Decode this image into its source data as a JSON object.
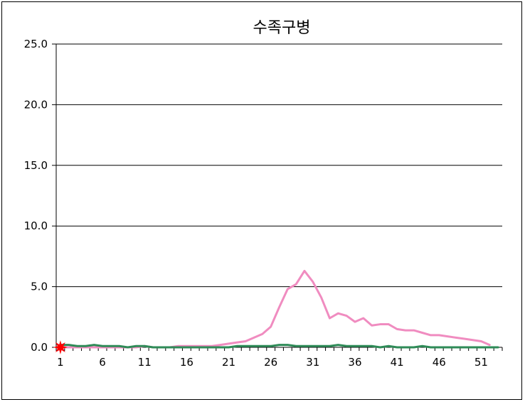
{
  "chart_data": {
    "type": "line",
    "title": "수족구병",
    "xlabel": "",
    "ylabel": "",
    "ylim": [
      0,
      25
    ],
    "y_ticks": [
      "0.0",
      "5.0",
      "10.0",
      "15.0",
      "20.0",
      "25.0"
    ],
    "x_ticks": [
      "1",
      "6",
      "11",
      "16",
      "21",
      "26",
      "31",
      "36",
      "41",
      "46",
      "51"
    ],
    "x_range": [
      1,
      53
    ],
    "grid": "horizontal",
    "legend": "none",
    "series": [
      {
        "color": "#f08cc0",
        "x": [
          1,
          2,
          3,
          4,
          5,
          6,
          7,
          8,
          9,
          10,
          11,
          12,
          13,
          14,
          15,
          16,
          17,
          18,
          19,
          20,
          21,
          22,
          23,
          24,
          25,
          26,
          27,
          28,
          29,
          30,
          31,
          32,
          33,
          34,
          35,
          36,
          37,
          38,
          39,
          40,
          41,
          42,
          43,
          44,
          45,
          46,
          47,
          48,
          49,
          50,
          51,
          52
        ],
        "values": [
          0.0,
          0.0,
          0.0,
          0.0,
          0.0,
          0.0,
          0.0,
          0.0,
          0.0,
          0.0,
          0.1,
          0.0,
          0.0,
          0.0,
          0.1,
          0.1,
          0.1,
          0.1,
          0.1,
          0.2,
          0.3,
          0.4,
          0.5,
          0.8,
          1.1,
          1.7,
          3.3,
          4.8,
          5.2,
          6.3,
          5.4,
          4.1,
          2.4,
          2.8,
          2.6,
          2.1,
          2.4,
          1.8,
          1.9,
          1.9,
          1.5,
          1.4,
          1.4,
          1.2,
          1.0,
          1.0,
          0.9,
          0.8,
          0.7,
          0.6,
          0.5,
          0.2
        ]
      },
      {
        "color": "#2e8b57",
        "x": [
          1,
          2,
          3,
          4,
          5,
          6,
          7,
          8,
          9,
          10,
          11,
          12,
          13,
          14,
          15,
          16,
          17,
          18,
          19,
          20,
          21,
          22,
          23,
          24,
          25,
          26,
          27,
          28,
          29,
          30,
          31,
          32,
          33,
          34,
          35,
          36,
          37,
          38,
          39,
          40,
          41,
          42,
          43,
          44,
          45,
          46,
          47,
          48,
          49,
          50,
          51,
          52,
          53
        ],
        "values": [
          0.2,
          0.2,
          0.1,
          0.1,
          0.2,
          0.1,
          0.1,
          0.1,
          0.0,
          0.1,
          0.1,
          0.0,
          0.0,
          0.0,
          0.0,
          0.0,
          0.0,
          0.0,
          0.0,
          0.0,
          0.0,
          0.1,
          0.1,
          0.1,
          0.1,
          0.1,
          0.2,
          0.2,
          0.1,
          0.1,
          0.1,
          0.1,
          0.1,
          0.2,
          0.1,
          0.1,
          0.1,
          0.1,
          0.0,
          0.1,
          0.0,
          0.0,
          0.0,
          0.1,
          0.0,
          0.0,
          0.0,
          0.0,
          0.0,
          0.0,
          0.0,
          0.0,
          0.0
        ]
      },
      {
        "color": "#1f3fa0",
        "marker": "x",
        "x": [
          1
        ],
        "values": [
          0.0
        ]
      },
      {
        "color": "#ff0000",
        "marker": "star",
        "x": [
          1
        ],
        "values": [
          0.0
        ]
      }
    ]
  }
}
